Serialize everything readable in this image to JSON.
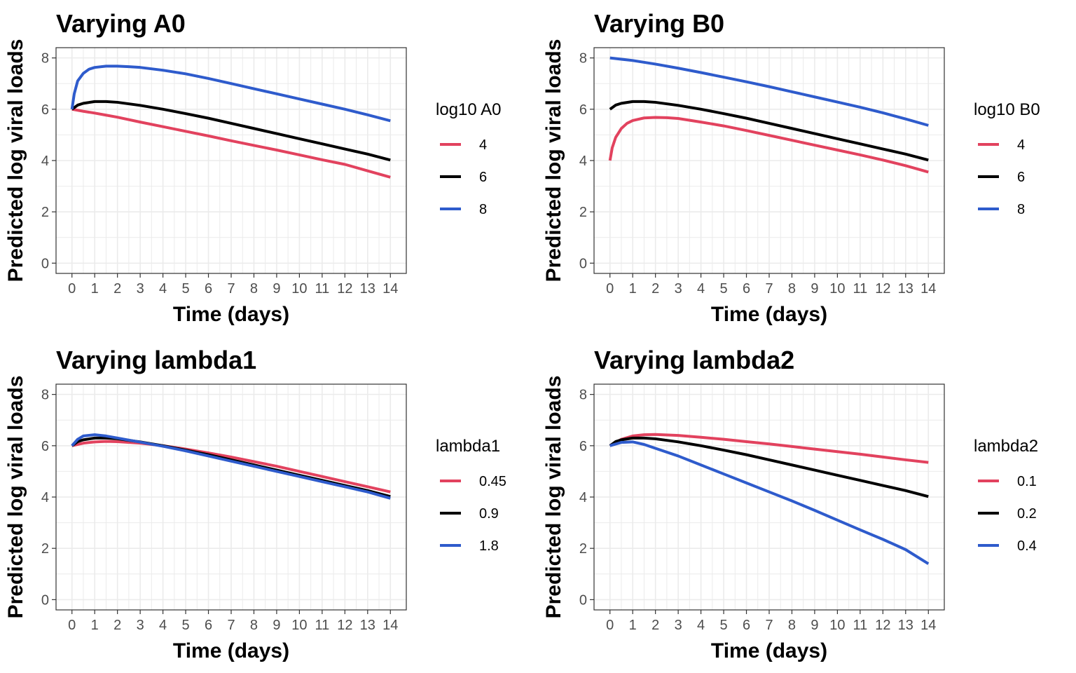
{
  "colors": {
    "red": "#E2425E",
    "black": "#000000",
    "blue": "#2E5BCC",
    "grid": "#ebebeb",
    "frame": "#333333"
  },
  "chart_data": [
    {
      "type": "line",
      "title": "Varying A0",
      "xlabel": "Time (days)",
      "ylabel": "Predicted log viral loads",
      "xlim": [
        0,
        14
      ],
      "ylim": [
        0,
        8
      ],
      "xticks": [
        0,
        1,
        2,
        3,
        4,
        5,
        6,
        7,
        8,
        9,
        10,
        11,
        12,
        13,
        14
      ],
      "yticks": [
        0,
        2,
        4,
        6,
        8
      ],
      "grid": true,
      "legend": {
        "title": "log10 A0",
        "placement": "right"
      },
      "series": [
        {
          "name": "4",
          "color": "#E2425E",
          "x": [
            0,
            0.25,
            0.5,
            1,
            1.5,
            2,
            3,
            4,
            5,
            6,
            7,
            8,
            9,
            10,
            11,
            12,
            13,
            14
          ],
          "y": [
            6.0,
            5.96,
            5.92,
            5.85,
            5.77,
            5.69,
            5.5,
            5.32,
            5.14,
            4.96,
            4.77,
            4.59,
            4.41,
            4.22,
            4.03,
            3.85,
            3.6,
            3.35
          ]
        },
        {
          "name": "6",
          "color": "#000000",
          "x": [
            0,
            0.25,
            0.5,
            1,
            1.5,
            2,
            3,
            4,
            5,
            6,
            7,
            8,
            9,
            10,
            11,
            12,
            13,
            14
          ],
          "y": [
            6.0,
            6.16,
            6.23,
            6.3,
            6.3,
            6.27,
            6.15,
            6.0,
            5.83,
            5.65,
            5.45,
            5.25,
            5.05,
            4.85,
            4.65,
            4.45,
            4.25,
            4.02
          ]
        },
        {
          "name": "8",
          "color": "#2E5BCC",
          "x": [
            0,
            0.1,
            0.25,
            0.5,
            0.75,
            1,
            1.5,
            2,
            2.5,
            3,
            4,
            5,
            6,
            7,
            8,
            9,
            10,
            11,
            12,
            13,
            14
          ],
          "y": [
            6.0,
            6.6,
            7.1,
            7.4,
            7.56,
            7.63,
            7.68,
            7.68,
            7.66,
            7.63,
            7.52,
            7.38,
            7.2,
            7.0,
            6.8,
            6.6,
            6.4,
            6.2,
            6.0,
            5.78,
            5.55
          ]
        }
      ]
    },
    {
      "type": "line",
      "title": "Varying B0",
      "xlabel": "Time (days)",
      "ylabel": "Predicted log viral loads",
      "xlim": [
        0,
        14
      ],
      "ylim": [
        0,
        8
      ],
      "xticks": [
        0,
        1,
        2,
        3,
        4,
        5,
        6,
        7,
        8,
        9,
        10,
        11,
        12,
        13,
        14
      ],
      "yticks": [
        0,
        2,
        4,
        6,
        8
      ],
      "grid": true,
      "legend": {
        "title": "log10 B0",
        "placement": "right"
      },
      "series": [
        {
          "name": "4",
          "color": "#E2425E",
          "x": [
            0,
            0.1,
            0.25,
            0.5,
            0.75,
            1,
            1.5,
            2,
            2.5,
            3,
            4,
            5,
            6,
            7,
            8,
            9,
            10,
            11,
            12,
            13,
            14
          ],
          "y": [
            4.0,
            4.5,
            4.9,
            5.25,
            5.45,
            5.56,
            5.66,
            5.68,
            5.67,
            5.64,
            5.5,
            5.35,
            5.17,
            4.98,
            4.79,
            4.6,
            4.41,
            4.22,
            4.02,
            3.8,
            3.55
          ]
        },
        {
          "name": "6",
          "color": "#000000",
          "x": [
            0,
            0.25,
            0.5,
            1,
            1.5,
            2,
            3,
            4,
            5,
            6,
            7,
            8,
            9,
            10,
            11,
            12,
            13,
            14
          ],
          "y": [
            6.0,
            6.16,
            6.23,
            6.3,
            6.3,
            6.27,
            6.15,
            6.0,
            5.83,
            5.65,
            5.45,
            5.25,
            5.05,
            4.85,
            4.65,
            4.45,
            4.25,
            4.02
          ]
        },
        {
          "name": "8",
          "color": "#2E5BCC",
          "x": [
            0,
            1,
            2,
            3,
            4,
            5,
            6,
            7,
            8,
            9,
            10,
            11,
            12,
            13,
            14
          ],
          "y": [
            8.0,
            7.9,
            7.76,
            7.6,
            7.43,
            7.25,
            7.07,
            6.88,
            6.68,
            6.48,
            6.28,
            6.08,
            5.86,
            5.62,
            5.37
          ]
        }
      ]
    },
    {
      "type": "line",
      "title": "Varying lambda1",
      "xlabel": "Time (days)",
      "ylabel": "Predicted log viral loads",
      "xlim": [
        0,
        14
      ],
      "ylim": [
        0,
        8
      ],
      "xticks": [
        0,
        1,
        2,
        3,
        4,
        5,
        6,
        7,
        8,
        9,
        10,
        11,
        12,
        13,
        14
      ],
      "yticks": [
        0,
        2,
        4,
        6,
        8
      ],
      "grid": true,
      "legend": {
        "title": "lambda1",
        "placement": "right"
      },
      "series": [
        {
          "name": "0.45",
          "color": "#E2425E",
          "x": [
            0,
            0.5,
            1,
            1.5,
            2,
            3,
            4,
            5,
            6,
            7,
            8,
            9,
            10,
            11,
            12,
            13,
            14
          ],
          "y": [
            6.0,
            6.1,
            6.15,
            6.17,
            6.16,
            6.1,
            6.0,
            5.87,
            5.72,
            5.56,
            5.38,
            5.2,
            5.0,
            4.8,
            4.6,
            4.4,
            4.2
          ]
        },
        {
          "name": "0.9",
          "color": "#000000",
          "x": [
            0,
            0.25,
            0.5,
            1,
            1.5,
            2,
            3,
            4,
            5,
            6,
            7,
            8,
            9,
            10,
            11,
            12,
            13,
            14
          ],
          "y": [
            6.0,
            6.16,
            6.23,
            6.3,
            6.3,
            6.27,
            6.15,
            6.0,
            5.83,
            5.65,
            5.45,
            5.25,
            5.05,
            4.85,
            4.65,
            4.45,
            4.25,
            4.02
          ]
        },
        {
          "name": "1.8",
          "color": "#2E5BCC",
          "x": [
            0,
            0.25,
            0.5,
            1,
            1.5,
            2,
            3,
            4,
            5,
            6,
            7,
            8,
            9,
            10,
            11,
            12,
            13,
            14
          ],
          "y": [
            6.0,
            6.25,
            6.38,
            6.43,
            6.38,
            6.3,
            6.14,
            5.98,
            5.8,
            5.6,
            5.4,
            5.2,
            5.0,
            4.8,
            4.6,
            4.4,
            4.2,
            3.95
          ]
        }
      ]
    },
    {
      "type": "line",
      "title": "Varying lambda2",
      "xlabel": "Time (days)",
      "ylabel": "Predicted log viral loads",
      "xlim": [
        0,
        14
      ],
      "ylim": [
        0,
        8
      ],
      "xticks": [
        0,
        1,
        2,
        3,
        4,
        5,
        6,
        7,
        8,
        9,
        10,
        11,
        12,
        13,
        14
      ],
      "yticks": [
        0,
        2,
        4,
        6,
        8
      ],
      "grid": true,
      "legend": {
        "title": "lambda2",
        "placement": "right"
      },
      "series": [
        {
          "name": "0.1",
          "color": "#E2425E",
          "x": [
            0,
            0.5,
            1,
            1.5,
            2,
            3,
            4,
            5,
            6,
            7,
            8,
            9,
            10,
            11,
            12,
            13,
            14
          ],
          "y": [
            6.0,
            6.25,
            6.38,
            6.43,
            6.44,
            6.4,
            6.33,
            6.25,
            6.16,
            6.07,
            5.97,
            5.87,
            5.77,
            5.67,
            5.56,
            5.45,
            5.35
          ]
        },
        {
          "name": "0.2",
          "color": "#000000",
          "x": [
            0,
            0.25,
            0.5,
            1,
            1.5,
            2,
            3,
            4,
            5,
            6,
            7,
            8,
            9,
            10,
            11,
            12,
            13,
            14
          ],
          "y": [
            6.0,
            6.16,
            6.23,
            6.3,
            6.3,
            6.27,
            6.15,
            6.0,
            5.83,
            5.65,
            5.45,
            5.25,
            5.05,
            4.85,
            4.65,
            4.45,
            4.25,
            4.02
          ]
        },
        {
          "name": "0.4",
          "color": "#2E5BCC",
          "x": [
            0,
            0.5,
            1,
            1.5,
            2,
            3,
            4,
            5,
            6,
            7,
            8,
            9,
            10,
            11,
            12,
            13,
            14
          ],
          "y": [
            6.0,
            6.13,
            6.15,
            6.05,
            5.9,
            5.6,
            5.25,
            4.9,
            4.55,
            4.2,
            3.85,
            3.48,
            3.1,
            2.72,
            2.35,
            1.95,
            1.4
          ]
        }
      ]
    }
  ]
}
